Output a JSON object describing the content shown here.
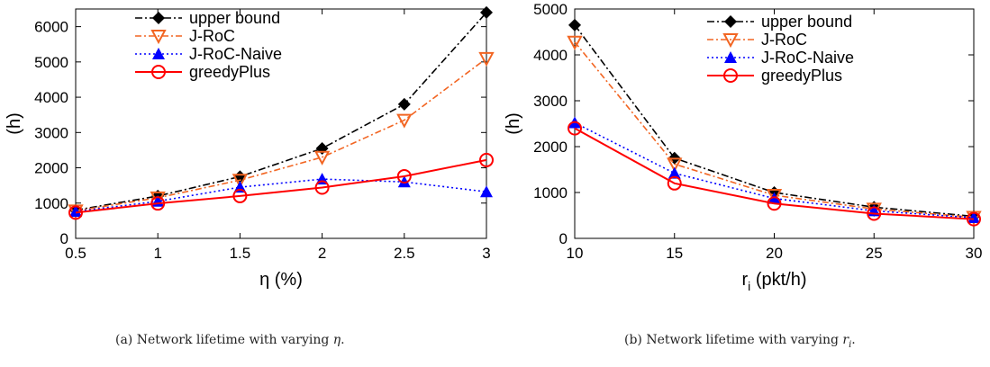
{
  "chart_data": [
    {
      "type": "line",
      "ylabel": "(h)",
      "xlabel_main": "η (%)",
      "xlabel_sub": "",
      "x": [
        0.5,
        1,
        1.5,
        2,
        2.5,
        3
      ],
      "xticks": [
        "0.5",
        "1",
        "1.5",
        "2",
        "2.5",
        "3"
      ],
      "yticks": [
        "0",
        "1000",
        "2000",
        "3000",
        "4000",
        "5000",
        "6000"
      ],
      "xlim": [
        0.5,
        3
      ],
      "ylim": [
        0,
        6500
      ],
      "legend_position": "top-left",
      "series": [
        {
          "name": "upper bound",
          "values": [
            800,
            1200,
            1750,
            2550,
            3800,
            6400
          ]
        },
        {
          "name": "J-RoC",
          "values": [
            780,
            1150,
            1650,
            2300,
            3350,
            5100
          ]
        },
        {
          "name": "J-RoC-Naive",
          "values": [
            760,
            1050,
            1450,
            1680,
            1600,
            1320
          ]
        },
        {
          "name": "greedyPlus",
          "values": [
            730,
            990,
            1200,
            1440,
            1760,
            2220
          ]
        }
      ]
    },
    {
      "type": "line",
      "ylabel": "(h)",
      "xlabel_main": "r",
      "xlabel_sub": "i",
      "xlabel_rest": " (pkt/h)",
      "x": [
        10,
        15,
        20,
        25,
        30
      ],
      "xticks": [
        "10",
        "15",
        "20",
        "25",
        "30"
      ],
      "yticks": [
        "0",
        "1000",
        "2000",
        "3000",
        "4000",
        "5000"
      ],
      "xlim": [
        10,
        30
      ],
      "ylim": [
        0,
        5000
      ],
      "legend_position": "top-right",
      "series": [
        {
          "name": "upper bound",
          "values": [
            4650,
            1750,
            1000,
            680,
            480
          ]
        },
        {
          "name": "J-RoC",
          "values": [
            4280,
            1620,
            940,
            640,
            460
          ]
        },
        {
          "name": "J-RoC-Naive",
          "values": [
            2520,
            1420,
            870,
            600,
            450
          ]
        },
        {
          "name": "greedyPlus",
          "values": [
            2400,
            1200,
            760,
            540,
            420
          ]
        }
      ]
    }
  ],
  "styles": [
    {
      "color": "#000000",
      "dash": "8,3,2,3",
      "marker": "diamond"
    },
    {
      "color": "#f26522",
      "dash": "7,3,2,3",
      "marker": "triangle-down"
    },
    {
      "color": "#0000ff",
      "dash": "2,3",
      "marker": "triangle-up"
    },
    {
      "color": "#ff0000",
      "dash": "",
      "marker": "circle"
    }
  ],
  "captions": {
    "a": "(a) Network lifetime with varying ",
    "a_var": "η",
    "a_end": ".",
    "b": "(b) Network lifetime with varying ",
    "b_var": "r",
    "b_sub": "i",
    "b_end": "."
  }
}
